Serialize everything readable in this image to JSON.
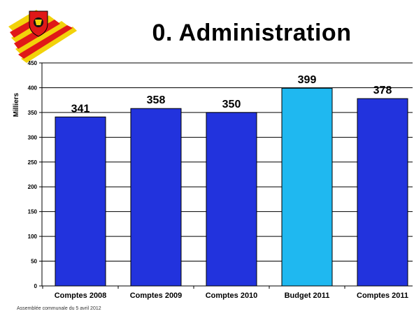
{
  "slide": {
    "title": "0. Administration",
    "footer": "Assemblée communale du 5 avril 2012"
  },
  "colors": {
    "bar_default": "#2233dd",
    "bar_highlight": "#1fb8f0",
    "bar_stroke": "#000000",
    "logo_red": "#e01818",
    "logo_yellow": "#f2d20a"
  },
  "logo": {
    "icon": "coat-of-arms-logo"
  },
  "chart_data": {
    "type": "bar",
    "title": "",
    "ylabel": "Milliers",
    "xlabel": "",
    "ylim": [
      0,
      450
    ],
    "yticks": [
      0,
      50,
      100,
      150,
      200,
      250,
      300,
      350,
      400,
      450
    ],
    "grid": true,
    "legend": "none",
    "categories": [
      "Comptes 2008",
      "Comptes 2009",
      "Comptes 2010",
      "Budget 2011",
      "Comptes 2011"
    ],
    "values": [
      341,
      358,
      350,
      399,
      378
    ],
    "value_labels": [
      "341",
      "358",
      "350",
      "399",
      "378"
    ],
    "highlight": [
      false,
      false,
      false,
      true,
      false
    ]
  }
}
